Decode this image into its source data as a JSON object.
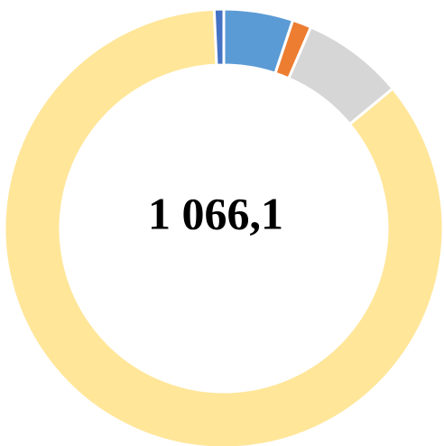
{
  "chart_data": {
    "type": "donut",
    "center_label": "1 066,1",
    "values": [
      5.1,
      1.4,
      7.5,
      85.3,
      0.7
    ],
    "colors": [
      "#5b9bd5",
      "#ed7d31",
      "#d6d6d6",
      "#ffe699",
      "#4472c4"
    ]
  }
}
